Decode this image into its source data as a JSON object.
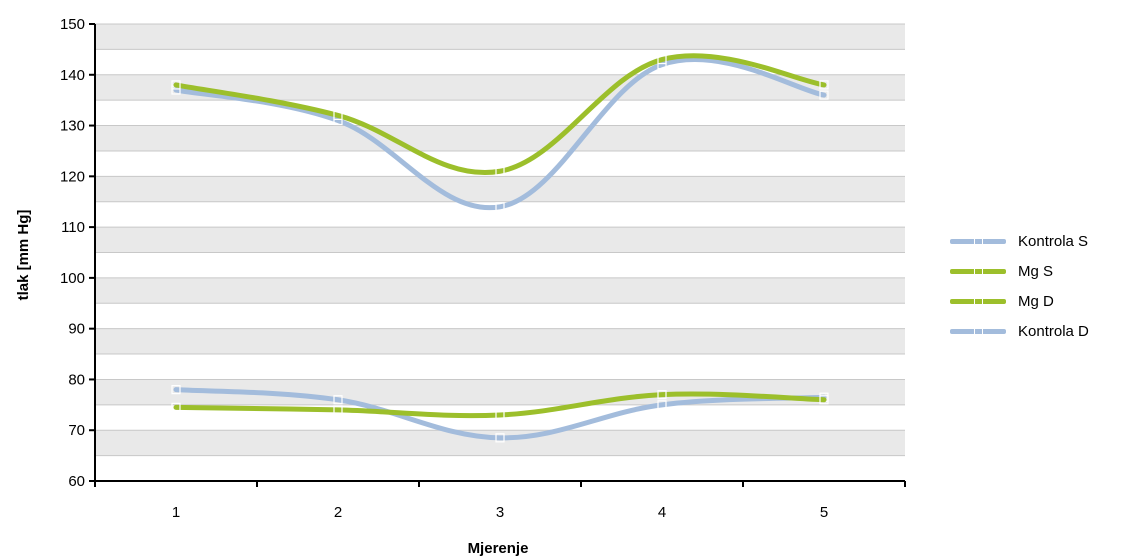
{
  "chart_data": {
    "type": "line",
    "title": "",
    "xlabel": "Mjerenje",
    "ylabel": "tlak [mm Hg]",
    "categories": [
      "1",
      "2",
      "3",
      "4",
      "5"
    ],
    "ylim": [
      60,
      150
    ],
    "yticks": [
      "60",
      "70",
      "80",
      "90",
      "100",
      "110",
      "120",
      "130",
      "140",
      "150"
    ],
    "grid": true,
    "legend_position": "right",
    "series": [
      {
        "name": "Kontrola S",
        "values": [
          137,
          131,
          114,
          142,
          136
        ],
        "color": "#a3bcdc"
      },
      {
        "name": "Mg S",
        "values": [
          138,
          132,
          121,
          143,
          138
        ],
        "color": "#9cbf2b"
      },
      {
        "name": "Mg D",
        "values": [
          74.5,
          74,
          73,
          77,
          76
        ],
        "color": "#9cbf2b"
      },
      {
        "name": "Kontrola D",
        "values": [
          78,
          76,
          68.5,
          75,
          76.5
        ],
        "color": "#a3bcdc"
      }
    ]
  }
}
